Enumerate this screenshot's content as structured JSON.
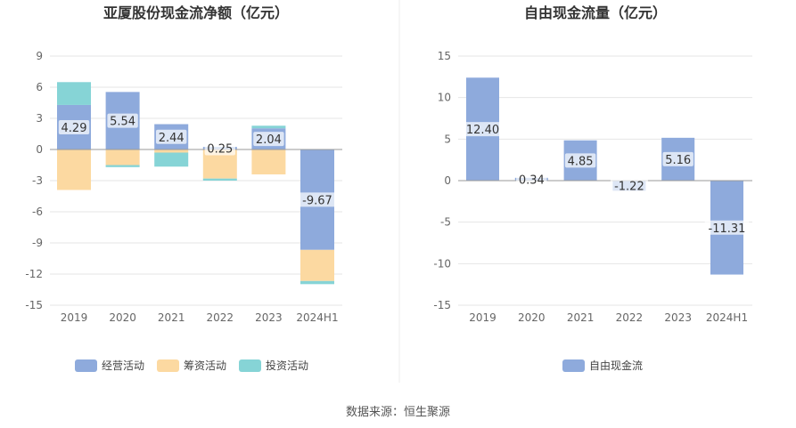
{
  "chart_data": [
    {
      "type": "bar",
      "stacked": true,
      "title": "亚厦股份现金流净额（亿元）",
      "categories": [
        "2019",
        "2020",
        "2021",
        "2022",
        "2023",
        "2024H1"
      ],
      "ylim": [
        -15,
        9
      ],
      "yticks": [
        9,
        6,
        3,
        0,
        -3,
        -6,
        -9,
        -12,
        -15
      ],
      "grid": true,
      "legend": "bottom",
      "series": [
        {
          "name": "经营活动",
          "color": "#8eaadc",
          "values": [
            4.29,
            5.54,
            2.44,
            0.25,
            2.04,
            -9.67
          ],
          "labels": [
            "4.29",
            "5.54",
            "2.44",
            "0.25",
            "2.04",
            "-9.67"
          ]
        },
        {
          "name": "筹资活动",
          "color": "#fcd9a1",
          "values": [
            -3.9,
            -1.5,
            -0.3,
            -2.8,
            -2.4,
            -3.0
          ]
        },
        {
          "name": "投资活动",
          "color": "#86d4d6",
          "values": [
            2.2,
            -0.2,
            -1.35,
            -0.2,
            0.25,
            -0.3
          ]
        }
      ]
    },
    {
      "type": "bar",
      "title": "自由现金流量（亿元）",
      "categories": [
        "2019",
        "2020",
        "2021",
        "2022",
        "2023",
        "2024H1"
      ],
      "ylim": [
        -15,
        15
      ],
      "yticks": [
        15,
        10,
        5,
        0,
        -5,
        -10,
        -15
      ],
      "grid": true,
      "legend": "bottom",
      "series": [
        {
          "name": "自由现金流",
          "color": "#8eaadc",
          "values": [
            12.4,
            0.34,
            4.85,
            -1.22,
            5.16,
            -11.31
          ],
          "labels": [
            "12.40",
            "0.34",
            "4.85",
            "-1.22",
            "5.16",
            "-11.31"
          ]
        }
      ]
    }
  ],
  "footer": {
    "source": "数据来源：恒生聚源"
  }
}
